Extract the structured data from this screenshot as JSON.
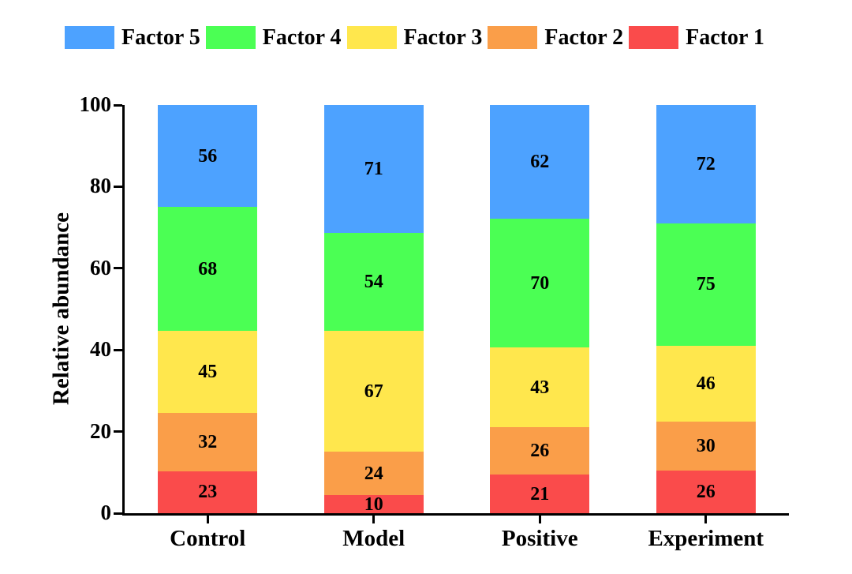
{
  "page": {
    "background": "#FFFFFF",
    "text_color": "#000000",
    "axis_color": "#000000"
  },
  "legend": {
    "position": "top",
    "items": [
      {
        "label": "Factor 5",
        "color": "#4DA2FF"
      },
      {
        "label": "Factor 4",
        "color": "#4BFF54"
      },
      {
        "label": "Factor 3",
        "color": "#FFE74D"
      },
      {
        "label": "Factor 2",
        "color": "#FA9E49"
      },
      {
        "label": "Factor 1",
        "color": "#FA4B4B"
      }
    ]
  },
  "chart_data": {
    "type": "bar",
    "variant": "stacked-normalized-100",
    "title": "",
    "xlabel": "",
    "ylabel": "Relative abundance",
    "categories": [
      "Control",
      "Model",
      "Positive",
      "Experiment"
    ],
    "series": [
      {
        "name": "Factor 1",
        "color": "#FA4B4B",
        "values": [
          23,
          10,
          21,
          26
        ]
      },
      {
        "name": "Factor 2",
        "color": "#FA9E49",
        "values": [
          32,
          24,
          26,
          30
        ]
      },
      {
        "name": "Factor 3",
        "color": "#FFE74D",
        "values": [
          45,
          67,
          43,
          46
        ]
      },
      {
        "name": "Factor 4",
        "color": "#4BFF54",
        "values": [
          68,
          54,
          70,
          75
        ]
      },
      {
        "name": "Factor 5",
        "color": "#4DA2FF",
        "values": [
          56,
          71,
          62,
          72
        ]
      }
    ],
    "segment_labels_visible": true,
    "ylim": [
      0,
      100
    ],
    "yticks": [
      0,
      20,
      40,
      60,
      80,
      100
    ],
    "grid": false,
    "legend_position": "top",
    "stack_order_bottom_to_top": [
      "Factor 1",
      "Factor 2",
      "Factor 3",
      "Factor 4",
      "Factor 5"
    ]
  }
}
